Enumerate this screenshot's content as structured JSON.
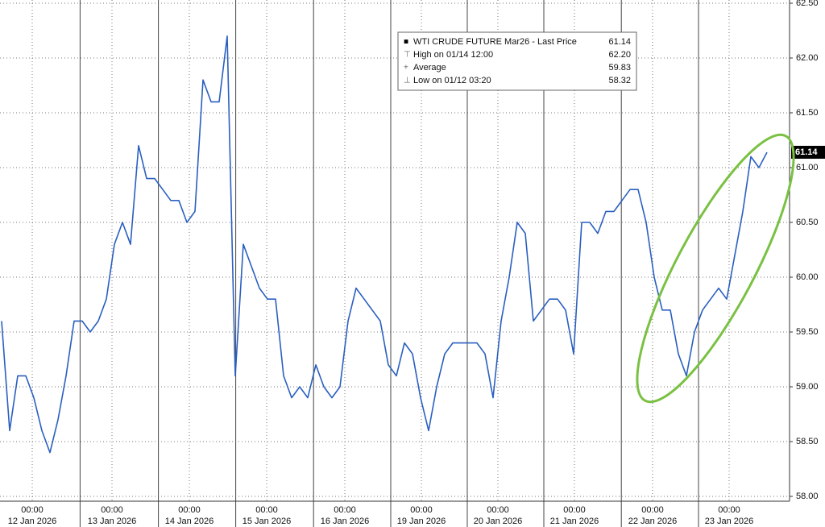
{
  "chart_data": {
    "type": "line",
    "series": [
      {
        "name": "WTI CRUDE FUTURE Mar26 - Last Price",
        "color": "#2a5fc0",
        "values": [
          59.6,
          58.6,
          59.1,
          59.1,
          58.9,
          58.6,
          58.4,
          58.7,
          59.1,
          59.6,
          59.6,
          59.5,
          59.6,
          59.8,
          60.3,
          60.5,
          60.3,
          61.2,
          60.9,
          60.9,
          60.8,
          60.7,
          60.7,
          60.5,
          60.6,
          61.8,
          61.6,
          61.6,
          62.2,
          59.1,
          60.3,
          60.1,
          59.9,
          59.8,
          59.8,
          59.1,
          58.9,
          59.0,
          58.9,
          59.2,
          59.0,
          58.9,
          59.0,
          59.6,
          59.9,
          59.8,
          59.7,
          59.6,
          59.2,
          59.1,
          59.4,
          59.3,
          58.9,
          58.6,
          59.0,
          59.3,
          59.4,
          59.4,
          59.4,
          59.4,
          59.3,
          58.9,
          59.6,
          60.0,
          60.5,
          60.4,
          59.6,
          59.7,
          59.8,
          59.8,
          59.7,
          59.3,
          60.5,
          60.5,
          60.4,
          60.6,
          60.6,
          60.7,
          60.8,
          60.8,
          60.5,
          60.0,
          59.7,
          59.7,
          59.3,
          59.1,
          59.5,
          59.7,
          59.8,
          59.9,
          59.8,
          60.2,
          60.6,
          61.1,
          61.0,
          61.14
        ]
      }
    ],
    "legend_stats": [
      {
        "name": "WTI CRUDE FUTURE Mar26 - Last Price",
        "stat": 61.14
      },
      {
        "name": "High on 01/14 12:00",
        "stat": {
          "value": 62.2,
          "label": "62.20"
        }
      },
      {
        "name": "Average",
        "stat": 59.83
      },
      {
        "name": "Low on 01/12 03:20",
        "stat": 58.32
      }
    ],
    "xlim": [
      0,
      95
    ],
    "xticks": [
      {
        "value": 3.8,
        "label": "00:00"
      },
      {
        "value": 13.7,
        "label": "00:00"
      },
      {
        "value": 23.3,
        "label": "00:00"
      },
      {
        "value": 32.9,
        "label": "00:00"
      },
      {
        "value": 42.6,
        "label": "00:00"
      },
      {
        "value": 52.1,
        "label": "00:00"
      },
      {
        "value": 61.6,
        "label": "00:00"
      },
      {
        "value": 71.1,
        "label": "00:00"
      },
      {
        "value": 80.8,
        "label": "00:00"
      },
      {
        "value": 90.3,
        "label": "00:00"
      }
    ],
    "xdates": [
      "12 Jan 2026",
      "13 Jan 2026",
      "14 Jan 2026",
      "15 Jan 2026",
      "16 Jan 2026",
      "19 Jan 2026",
      "20 Jan 2026",
      "21 Jan 2026",
      "22 Jan 2026",
      "23 Jan 2026"
    ],
    "ylim": [
      58.0,
      62.5
    ],
    "yticks": [
      {
        "value": 58.0,
        "label": "58.00"
      },
      {
        "value": 58.5,
        "label": "58.50"
      },
      {
        "value": 59.0,
        "label": "59.00"
      },
      {
        "value": 59.5,
        "label": "59.50"
      },
      {
        "value": 60.0,
        "label": "60.00"
      },
      {
        "value": 60.5,
        "label": "60.50"
      },
      {
        "value": 61.0,
        "label": "61.00"
      },
      {
        "value": 61.5,
        "label": "61.50"
      },
      {
        "value": 62.0,
        "label": "62.00"
      },
      {
        "value": 62.5,
        "label": "62.50"
      }
    ],
    "grid": true
  }
}
